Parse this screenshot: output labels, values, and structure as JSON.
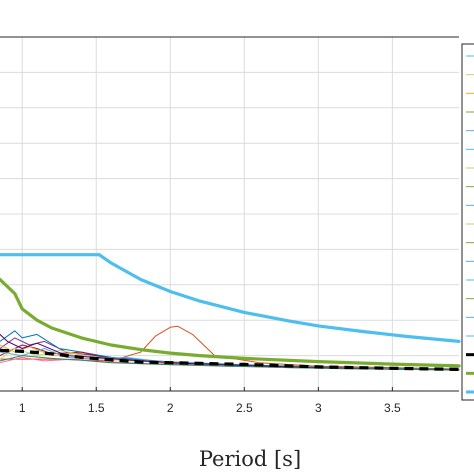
{
  "chart_data": {
    "type": "line",
    "xlabel": "Period [s]",
    "ylabel": "",
    "title": "",
    "xlim": [
      0.85,
      3.95
    ],
    "ylim": [
      0,
      1
    ],
    "x_ticks": [
      1,
      1.5,
      2,
      2.5,
      3,
      3.5
    ],
    "x_tick_labels": [
      "1",
      "1.5",
      "2",
      "2.5",
      "3",
      "3.5"
    ],
    "grid": true,
    "legend": {
      "placement": "right",
      "entries_visible": 19
    },
    "colors": {
      "design_upper": "#4DBEEE",
      "design_mid": "#77AC30",
      "mean": "#000000",
      "record_highlight": "#D95319"
    },
    "series": [
      {
        "color": "#4DBEEE",
        "style": "solid-thick",
        "x": [
          0.85,
          1.0,
          1.2,
          1.4,
          1.52,
          1.6,
          1.8,
          2.0,
          2.2,
          2.5,
          2.8,
          3.0,
          3.3,
          3.6,
          3.95
        ],
        "y": [
          0.385,
          0.385,
          0.385,
          0.385,
          0.385,
          0.362,
          0.315,
          0.281,
          0.254,
          0.222,
          0.198,
          0.184,
          0.168,
          0.154,
          0.14
        ]
      },
      {
        "color": "#77AC30",
        "style": "solid-thick",
        "x": [
          0.85,
          0.95,
          1.0,
          1.1,
          1.2,
          1.4,
          1.6,
          1.8,
          2.0,
          2.2,
          2.5,
          3.0,
          3.5,
          3.95
        ],
        "y": [
          0.315,
          0.275,
          0.232,
          0.2,
          0.178,
          0.15,
          0.13,
          0.117,
          0.107,
          0.1,
          0.092,
          0.083,
          0.076,
          0.071
        ]
      },
      {
        "color": "#000000",
        "style": "dashed-thick",
        "x": [
          0.85,
          1.0,
          1.2,
          1.4,
          1.6,
          1.8,
          2.0,
          2.5,
          3.0,
          3.5,
          3.95
        ],
        "y": [
          0.115,
          0.112,
          0.105,
          0.095,
          0.088,
          0.082,
          0.08,
          0.075,
          0.068,
          0.064,
          0.061
        ]
      },
      {
        "color": "#D95319",
        "style": "solid-thin",
        "x": [
          0.85,
          1.2,
          1.6,
          1.8,
          1.9,
          2.0,
          2.05,
          2.15,
          2.3,
          2.6,
          3.0,
          3.5,
          3.95
        ],
        "y": [
          0.09,
          0.09,
          0.085,
          0.11,
          0.155,
          0.18,
          0.183,
          0.16,
          0.1,
          0.08,
          0.07,
          0.066,
          0.062
        ]
      },
      {
        "color": "#7E2F8E",
        "style": "solid-thin",
        "x": [
          0.85,
          0.95,
          1.05,
          1.15,
          1.3,
          1.5,
          1.7,
          2.0,
          2.5,
          3.0,
          3.5,
          3.95
        ],
        "y": [
          0.12,
          0.15,
          0.13,
          0.14,
          0.11,
          0.1,
          0.09,
          0.08,
          0.072,
          0.066,
          0.062,
          0.06
        ]
      },
      {
        "color": "#0072BD",
        "style": "solid-thin",
        "x": [
          0.85,
          0.95,
          1.0,
          1.1,
          1.25,
          1.4,
          1.6,
          2.0,
          2.5,
          3.0,
          3.5,
          3.95
        ],
        "y": [
          0.14,
          0.17,
          0.15,
          0.16,
          0.12,
          0.11,
          0.095,
          0.082,
          0.074,
          0.068,
          0.064,
          0.061
        ]
      },
      {
        "color": "#A2142F",
        "style": "solid-thin",
        "x": [
          0.85,
          1.0,
          1.1,
          1.2,
          1.4,
          1.6,
          1.8,
          2.0,
          2.5,
          3.0,
          3.5,
          3.95
        ],
        "y": [
          0.1,
          0.13,
          0.12,
          0.105,
          0.11,
          0.09,
          0.085,
          0.078,
          0.071,
          0.066,
          0.062,
          0.06
        ]
      },
      {
        "color": "#EDB120",
        "style": "solid-thin",
        "x": [
          0.85,
          0.95,
          1.05,
          1.2,
          1.35,
          1.5,
          1.7,
          2.0,
          2.5,
          3.0,
          3.5,
          3.95
        ],
        "y": [
          0.13,
          0.11,
          0.125,
          0.1,
          0.105,
          0.092,
          0.086,
          0.079,
          0.072,
          0.067,
          0.063,
          0.06
        ]
      },
      {
        "color": "#5FA9D6",
        "style": "solid-thin",
        "x": [
          0.85,
          1.0,
          1.15,
          1.3,
          1.5,
          1.7,
          1.9,
          2.2,
          2.6,
          3.0,
          3.5,
          3.95
        ],
        "y": [
          0.11,
          0.1,
          0.12,
          0.095,
          0.09,
          0.095,
          0.085,
          0.077,
          0.071,
          0.066,
          0.062,
          0.06
        ]
      },
      {
        "color": "#C9D36A",
        "style": "solid-thin",
        "x": [
          0.85,
          0.95,
          1.1,
          1.25,
          1.45,
          1.65,
          1.9,
          2.2,
          2.6,
          3.0,
          3.5,
          3.95
        ],
        "y": [
          0.09,
          0.12,
          0.1,
          0.115,
          0.098,
          0.09,
          0.082,
          0.076,
          0.07,
          0.066,
          0.062,
          0.06
        ]
      },
      {
        "color": "#FF69B4",
        "style": "solid-thin",
        "x": [
          0.85,
          1.0,
          1.15,
          1.35,
          1.55,
          1.8,
          2.1,
          2.4,
          2.8,
          3.2,
          3.6,
          3.95
        ],
        "y": [
          0.08,
          0.095,
          0.085,
          0.09,
          0.083,
          0.078,
          0.074,
          0.07,
          0.066,
          0.063,
          0.061,
          0.059
        ]
      },
      {
        "color": "#4B0082",
        "style": "solid-thin",
        "x": [
          0.85,
          0.9,
          1.0,
          1.1,
          1.3,
          1.5,
          1.8,
          2.1,
          2.5,
          3.0,
          3.5,
          3.95
        ],
        "y": [
          0.16,
          0.14,
          0.12,
          0.135,
          0.1,
          0.095,
          0.085,
          0.078,
          0.072,
          0.066,
          0.062,
          0.06
        ]
      },
      {
        "color": "#2E8B57",
        "style": "solid-thin",
        "x": [
          0.85,
          1.0,
          1.2,
          1.4,
          1.6,
          1.8,
          2.0,
          2.4,
          2.8,
          3.2,
          3.6,
          3.95
        ],
        "y": [
          0.085,
          0.1,
          0.092,
          0.087,
          0.08,
          0.077,
          0.074,
          0.07,
          0.066,
          0.063,
          0.061,
          0.059
        ]
      }
    ]
  }
}
